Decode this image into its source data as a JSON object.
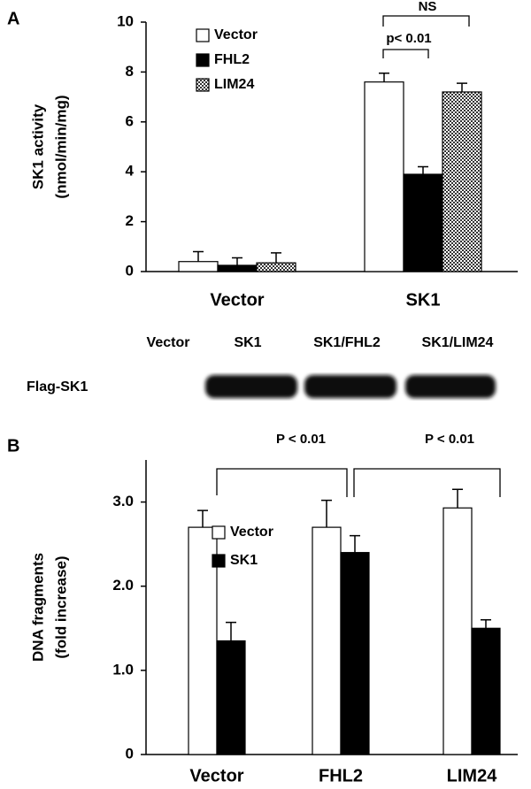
{
  "chart_data": [
    {
      "type": "bar",
      "panel_label": "A",
      "ylabel": [
        "SK1 activity",
        "(nmol/min/mg)"
      ],
      "categories": [
        "Vector",
        "SK1"
      ],
      "series": [
        {
          "name": "Vector",
          "color": "white",
          "values": [
            0.4,
            7.6
          ],
          "errors": [
            0.4,
            0.35
          ]
        },
        {
          "name": "FHL2",
          "color": "black",
          "values": [
            0.25,
            3.9
          ],
          "errors": [
            0.3,
            0.3
          ]
        },
        {
          "name": "LIM24",
          "color": "checker",
          "values": [
            0.35,
            7.2
          ],
          "errors": [
            0.4,
            0.35
          ]
        }
      ],
      "ylim": [
        0,
        10
      ],
      "yticks": [
        0,
        2,
        4,
        6,
        8,
        10
      ],
      "annotations": [
        {
          "text": "NS"
        },
        {
          "text": "p< 0.01"
        }
      ]
    },
    {
      "type": "bar",
      "panel_label": "B",
      "ylabel": [
        "DNA fragments",
        "(fold increase)"
      ],
      "categories": [
        "Vector",
        "FHL2",
        "LIM24"
      ],
      "series": [
        {
          "name": "Vector",
          "color": "white",
          "values": [
            2.7,
            2.7,
            2.93
          ],
          "errors": [
            0.2,
            0.32,
            0.22
          ]
        },
        {
          "name": "SK1",
          "color": "black",
          "values": [
            1.35,
            2.4,
            1.5
          ],
          "errors": [
            0.22,
            0.2,
            0.1
          ]
        }
      ],
      "ylim": [
        0,
        3.5
      ],
      "yticks": [
        0,
        {
          "value": 1,
          "label": "1.0"
        },
        {
          "value": 2,
          "label": "2.0"
        },
        {
          "value": 3,
          "label": "3.0"
        }
      ],
      "annotations": [
        {
          "text": "P < 0.01"
        },
        {
          "text": "P < 0.01"
        }
      ]
    }
  ],
  "blot": {
    "lanes": [
      "Vector",
      "SK1",
      "SK1/FHL2",
      "SK1/LIM24"
    ],
    "row_label": "Flag-SK1"
  }
}
